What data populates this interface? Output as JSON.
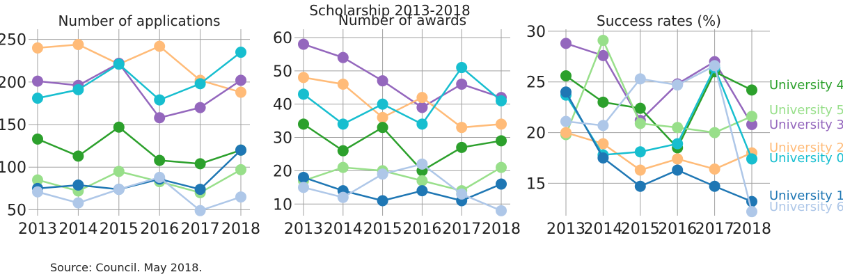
{
  "chart_data": {
    "suptitle": "Scholarship 2013-2018",
    "source": "Source: Council. May 2018.",
    "type": "line",
    "x": [
      "2013",
      "2014",
      "2015",
      "2016",
      "2017",
      "2018"
    ],
    "colors": {
      "University 0": "#17becf",
      "University 1": "#1f77b4",
      "University 2": "#ffbb78",
      "University 3": "#9467bd",
      "University 4": "#2ca02c",
      "University 5": "#98df8a",
      "University 6": "#aec7e8"
    },
    "panels": [
      {
        "title": "Number of applications",
        "ylim": [
          43,
          262
        ],
        "yticks": [
          "50",
          "100",
          "150",
          "200",
          "250"
        ],
        "series": [
          {
            "name": "University 2",
            "values": [
              240,
              244,
              221,
              242,
              202,
              188
            ]
          },
          {
            "name": "University 3",
            "values": [
              201,
              196,
              222,
              158,
              170,
              202
            ]
          },
          {
            "name": "University 0",
            "values": [
              181,
              191,
              221,
              179,
              198,
              235
            ]
          },
          {
            "name": "University 4",
            "values": [
              133,
              113,
              147,
              108,
              104,
              120
            ]
          },
          {
            "name": "University 5",
            "values": [
              85,
              72,
              95,
              83,
              70,
              97
            ]
          },
          {
            "name": "University 1",
            "values": [
              75,
              79,
              74,
              86,
              74,
              120
            ]
          },
          {
            "name": "University 6",
            "values": [
              71,
              58,
              74,
              88,
              49,
              65
            ]
          }
        ]
      },
      {
        "title": "Number of awards",
        "ylim": [
          6.5,
          62.5
        ],
        "yticks": [
          "10",
          "20",
          "30",
          "40",
          "50",
          "60"
        ],
        "series": [
          {
            "name": "University 3",
            "values": [
              58,
              54,
              47,
              39,
              46,
              42
            ]
          },
          {
            "name": "University 2",
            "values": [
              48,
              46,
              36,
              42,
              33,
              34
            ]
          },
          {
            "name": "University 0",
            "values": [
              43,
              34,
              40,
              34,
              51,
              41
            ]
          },
          {
            "name": "University 4",
            "values": [
              34,
              26,
              33,
              20,
              27,
              29
            ]
          },
          {
            "name": "University 5",
            "values": [
              17,
              21,
              20,
              17,
              14,
              21
            ]
          },
          {
            "name": "University 1",
            "values": [
              18,
              14,
              11,
              14,
              11,
              16
            ]
          },
          {
            "name": "University 6",
            "values": [
              15,
              12,
              19,
              22,
              13,
              8
            ]
          }
        ]
      },
      {
        "title": "Success rates (%)",
        "ylim": [
          11.8,
          30.2
        ],
        "yticks": [
          "15",
          "20",
          "25",
          "30"
        ],
        "series": [
          {
            "name": "University 3",
            "values": [
              28.8,
              27.6,
              21.2,
              24.8,
              27.0,
              20.8
            ]
          },
          {
            "name": "University 4",
            "values": [
              25.6,
              23.0,
              22.4,
              18.5,
              26.0,
              24.2
            ]
          },
          {
            "name": "University 5",
            "values": [
              19.8,
              29.1,
              20.9,
              20.5,
              20.0,
              21.6
            ]
          },
          {
            "name": "University 2",
            "values": [
              20.0,
              18.9,
              16.3,
              17.4,
              16.4,
              18.0
            ]
          },
          {
            "name": "University 0",
            "values": [
              23.7,
              17.8,
              18.1,
              18.9,
              26.4,
              17.4
            ]
          },
          {
            "name": "University 1",
            "values": [
              24.0,
              17.5,
              14.7,
              16.3,
              14.7,
              13.2
            ]
          },
          {
            "name": "University 6",
            "values": [
              21.1,
              20.7,
              25.3,
              24.7,
              26.6,
              12.2
            ]
          }
        ],
        "end_labels": [
          {
            "name": "University 4",
            "text": "University 4"
          },
          {
            "name": "University 5",
            "text": "University 5"
          },
          {
            "name": "University 3",
            "text": "University 3"
          },
          {
            "name": "University 2",
            "text": "University 2"
          },
          {
            "name": "University 0",
            "text": "University 0"
          },
          {
            "name": "University 1",
            "text": "University 1"
          },
          {
            "name": "University 6",
            "text": "University 6"
          }
        ]
      }
    ]
  }
}
